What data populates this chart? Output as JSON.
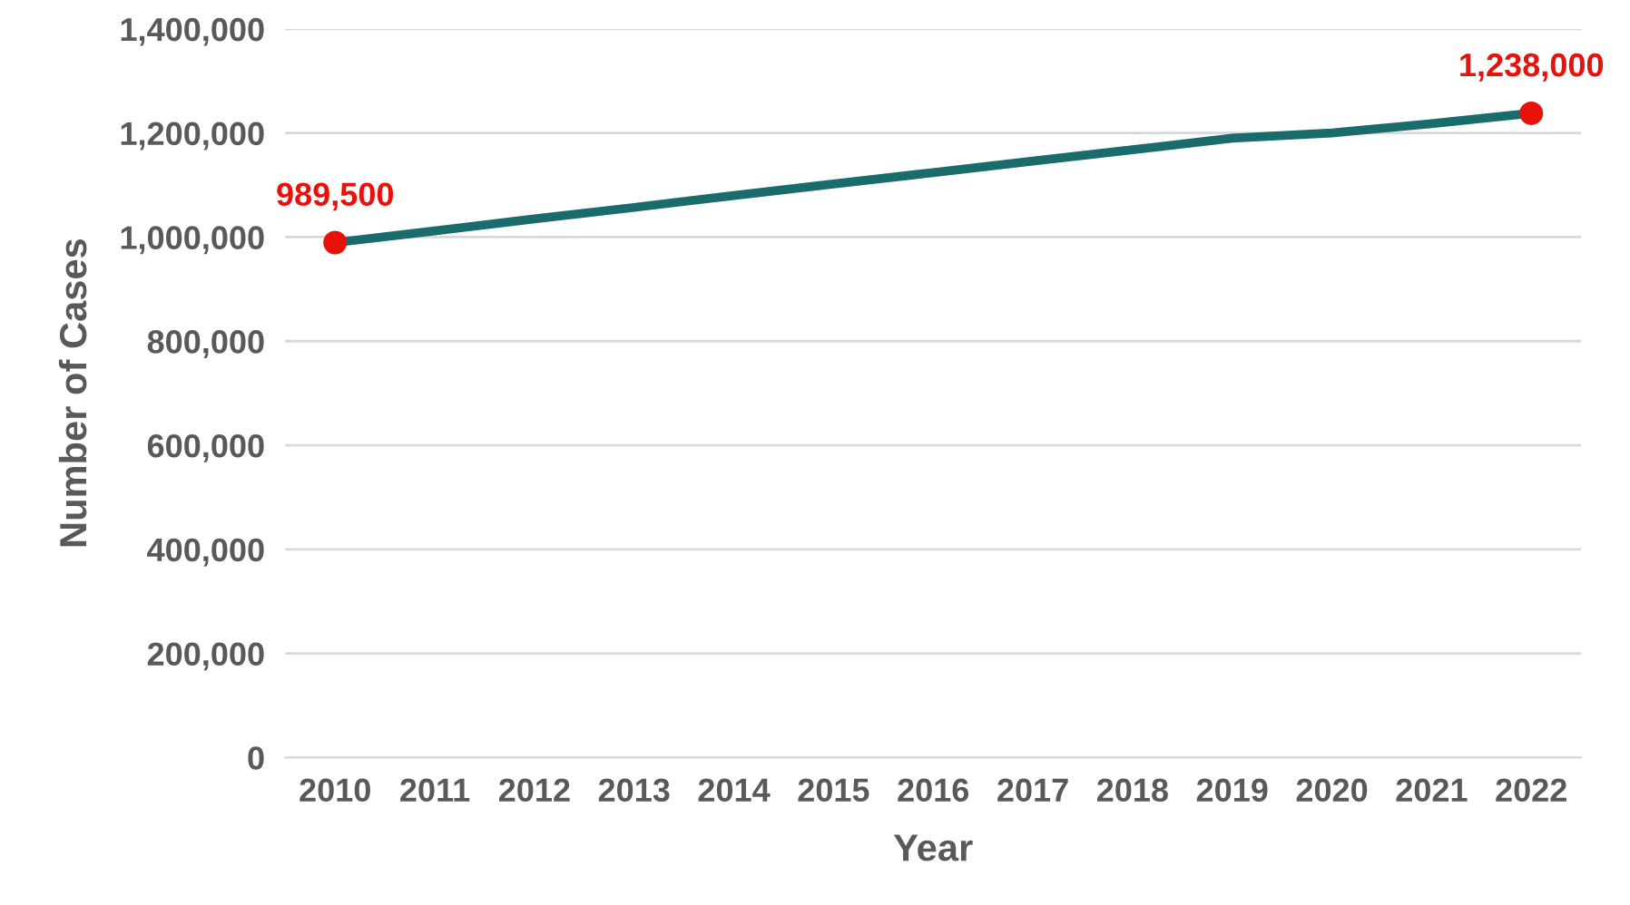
{
  "chart_data": {
    "type": "line",
    "xlabel": "Year",
    "ylabel": "Number of Cases",
    "categories": [
      "2010",
      "2011",
      "2012",
      "2013",
      "2014",
      "2015",
      "2016",
      "2017",
      "2018",
      "2019",
      "2020",
      "2021",
      "2022"
    ],
    "series": [
      {
        "color": "#1a6b6b",
        "values": [
          989500,
          1012000,
          1035000,
          1057000,
          1080000,
          1102000,
          1124000,
          1146000,
          1168000,
          1190000,
          1200000,
          1218000,
          1238000
        ]
      },
      {
        "type": "scatter",
        "color": "#e8120c",
        "values": [
          989500,
          null,
          null,
          null,
          null,
          null,
          null,
          null,
          null,
          null,
          null,
          null,
          1238000
        ],
        "value_labels": [
          "989,500",
          null,
          null,
          null,
          null,
          null,
          null,
          null,
          null,
          null,
          null,
          null,
          "1,238,000"
        ]
      }
    ],
    "ylim": [
      0,
      1400000
    ],
    "yticks": [
      {
        "value": 0,
        "label": "0"
      },
      {
        "value": 200000,
        "label": "200,000"
      },
      {
        "value": 400000,
        "label": "400,000"
      },
      {
        "value": 600000,
        "label": "600,000"
      },
      {
        "value": 800000,
        "label": "800,000"
      },
      {
        "value": 1000000,
        "label": "1,000,000"
      },
      {
        "value": 1200000,
        "label": "1,200,000"
      },
      {
        "value": 1400000,
        "label": "1,400,000"
      }
    ],
    "grid": "y",
    "legend": false
  }
}
